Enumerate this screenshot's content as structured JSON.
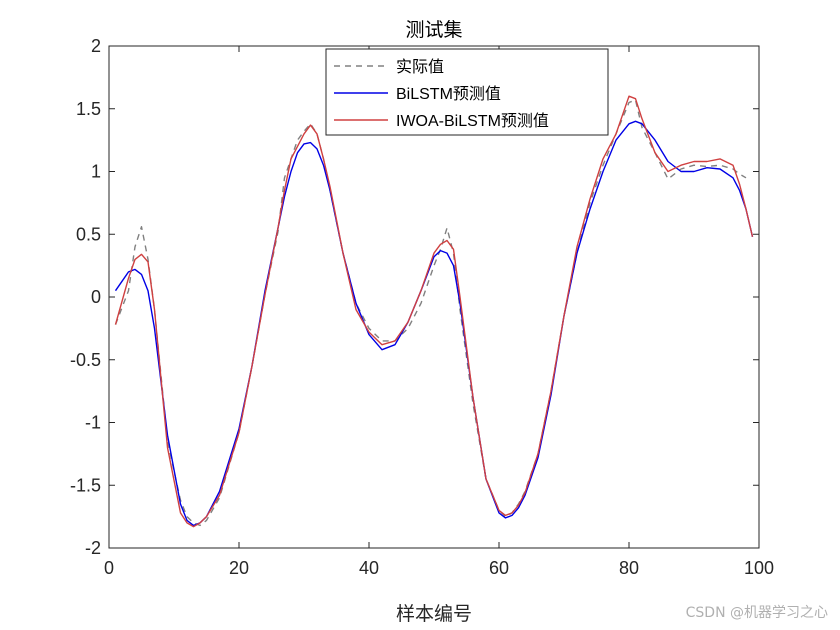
{
  "chart_data": {
    "type": "line",
    "title": "测试集",
    "xlabel": "样本编号",
    "ylabel": "",
    "xlim": [
      0,
      100
    ],
    "ylim": [
      -2,
      2
    ],
    "xticks": [
      "0",
      "20",
      "40",
      "60",
      "80",
      "100"
    ],
    "yticks": [
      "-2",
      "-1.5",
      "-1",
      "-0.5",
      "0",
      "0.5",
      "1",
      "1.5",
      "2"
    ],
    "grid": false,
    "legend_position": "top-right",
    "x": [
      1,
      3,
      4,
      5,
      6,
      7,
      9,
      11,
      12,
      13,
      14,
      15,
      17,
      20,
      22,
      24,
      26,
      27,
      28,
      29,
      30,
      31,
      32,
      33,
      34,
      36,
      38,
      40,
      42,
      44,
      46,
      48,
      50,
      51,
      52,
      53,
      54,
      56,
      58,
      60,
      61,
      62,
      63,
      64,
      66,
      68,
      70,
      72,
      74,
      76,
      78,
      80,
      81,
      82,
      84,
      86,
      88,
      90,
      92,
      94,
      96,
      97,
      98,
      99
    ],
    "series": [
      {
        "name": "实际值",
        "color": "#808080",
        "dash": "6,5",
        "values": [
          -0.22,
          0.05,
          0.4,
          0.56,
          0.3,
          -0.1,
          -1.15,
          -1.62,
          -1.75,
          -1.8,
          -1.82,
          -1.78,
          -1.6,
          -1.08,
          -0.55,
          0.02,
          0.52,
          0.95,
          1.1,
          1.25,
          1.32,
          1.38,
          1.3,
          1.1,
          0.85,
          0.35,
          -0.05,
          -0.25,
          -0.35,
          -0.35,
          -0.25,
          -0.05,
          0.25,
          0.38,
          0.55,
          0.35,
          -0.1,
          -0.85,
          -1.45,
          -1.7,
          -1.75,
          -1.72,
          -1.65,
          -1.55,
          -1.25,
          -0.75,
          -0.15,
          0.35,
          0.75,
          1.05,
          1.3,
          1.55,
          1.57,
          1.35,
          1.15,
          0.94,
          1.02,
          1.05,
          1.04,
          1.05,
          1.02,
          0.98,
          0.95,
          null
        ]
      },
      {
        "name": "BiLSTM预测值",
        "color": "#0000e6",
        "dash": "",
        "values": [
          0.05,
          0.2,
          0.22,
          0.18,
          0.05,
          -0.25,
          -1.1,
          -1.65,
          -1.78,
          -1.82,
          -1.8,
          -1.75,
          -1.55,
          -1.05,
          -0.55,
          0.05,
          0.55,
          0.8,
          1.0,
          1.15,
          1.22,
          1.23,
          1.18,
          1.05,
          0.85,
          0.35,
          -0.05,
          -0.3,
          -0.42,
          -0.38,
          -0.2,
          0.05,
          0.32,
          0.37,
          0.35,
          0.25,
          -0.05,
          -0.8,
          -1.45,
          -1.72,
          -1.76,
          -1.74,
          -1.68,
          -1.58,
          -1.28,
          -0.78,
          -0.15,
          0.35,
          0.7,
          1.0,
          1.25,
          1.38,
          1.4,
          1.38,
          1.25,
          1.08,
          1.0,
          1.0,
          1.03,
          1.02,
          0.95,
          0.85,
          0.7,
          0.48
        ]
      },
      {
        "name": "IWOA-BiLSTM预测值",
        "color": "#d04040",
        "dash": "",
        "values": [
          -0.22,
          0.15,
          0.3,
          0.34,
          0.28,
          -0.1,
          -1.2,
          -1.72,
          -1.8,
          -1.83,
          -1.8,
          -1.75,
          -1.58,
          -1.08,
          -0.55,
          0.02,
          0.55,
          0.85,
          1.1,
          1.2,
          1.3,
          1.37,
          1.3,
          1.1,
          0.88,
          0.35,
          -0.1,
          -0.28,
          -0.38,
          -0.35,
          -0.2,
          0.05,
          0.35,
          0.42,
          0.45,
          0.38,
          0.0,
          -0.8,
          -1.45,
          -1.7,
          -1.74,
          -1.72,
          -1.66,
          -1.56,
          -1.25,
          -0.75,
          -0.15,
          0.4,
          0.78,
          1.1,
          1.3,
          1.6,
          1.58,
          1.42,
          1.15,
          1.0,
          1.05,
          1.08,
          1.08,
          1.1,
          1.05,
          0.9,
          0.7,
          0.48
        ]
      }
    ]
  },
  "watermark": "CSDN @机器学习之心"
}
